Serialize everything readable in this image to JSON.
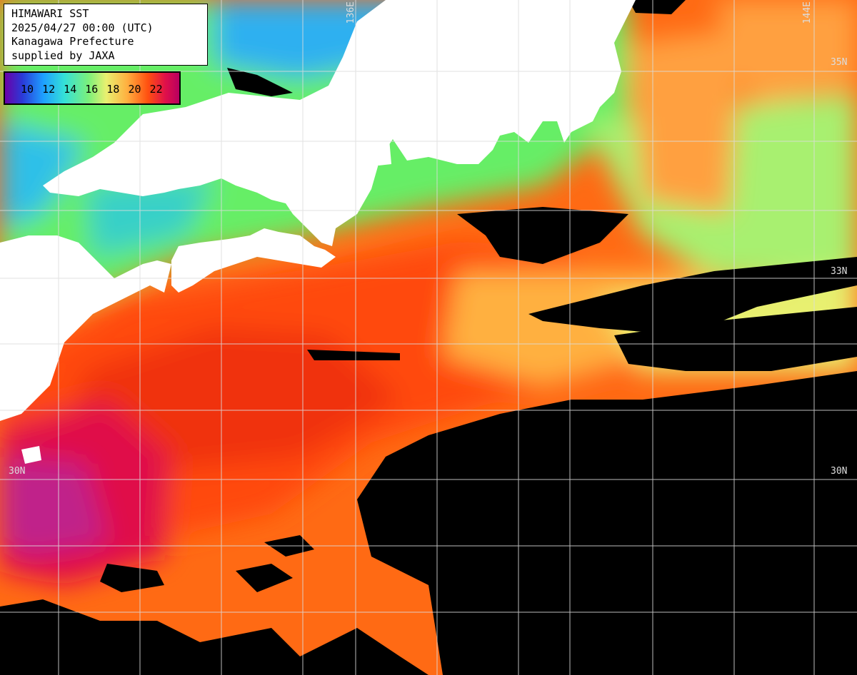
{
  "header": {
    "title": "HIMAWARI SST",
    "datetime": "2025/04/27 00:00 (UTC)",
    "region": "Kanagawa Prefecture",
    "credit": "supplied by JAXA"
  },
  "legend": {
    "labels": "10 12 14 16 18 20 22",
    "values": [
      10,
      12,
      14,
      16,
      18,
      20,
      22
    ]
  },
  "grid": {
    "lat_labels": [
      "35N",
      "33N",
      "30N",
      "30N"
    ],
    "lon_labels": [
      "136E",
      "144E"
    ]
  },
  "colors": {
    "land": "#ffffff",
    "cloud_no_data": "#000000",
    "grid_line": "#dddddd"
  }
}
